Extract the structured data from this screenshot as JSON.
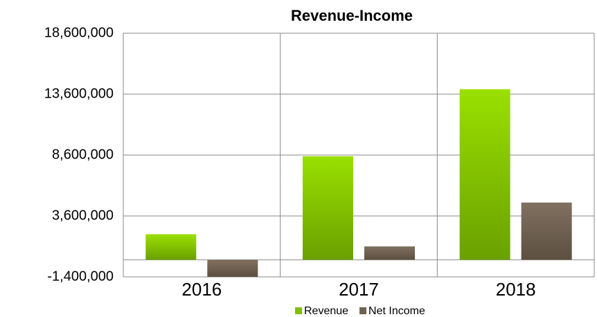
{
  "chart_data": {
    "type": "bar",
    "title": "Revenue-Income",
    "categories": [
      "2016",
      "2017",
      "2018"
    ],
    "series": [
      {
        "name": "Revenue",
        "color": "#7fc000",
        "values": [
          2100000,
          8500000,
          14000000
        ]
      },
      {
        "name": "Net Income",
        "color": "#6f6150",
        "values": [
          -1400000,
          1100000,
          4700000
        ]
      }
    ],
    "ylim": [
      -1400000,
      18600000
    ],
    "yticks": [
      {
        "value": -1400000,
        "label": "-1,400,000"
      },
      {
        "value": 3600000,
        "label": "3,600,000"
      },
      {
        "value": 8600000,
        "label": "8,600,000"
      },
      {
        "value": 13600000,
        "label": "13,600,000"
      },
      {
        "value": 18600000,
        "label": "18,600,000"
      }
    ],
    "grid": true,
    "legend": "bottom"
  }
}
